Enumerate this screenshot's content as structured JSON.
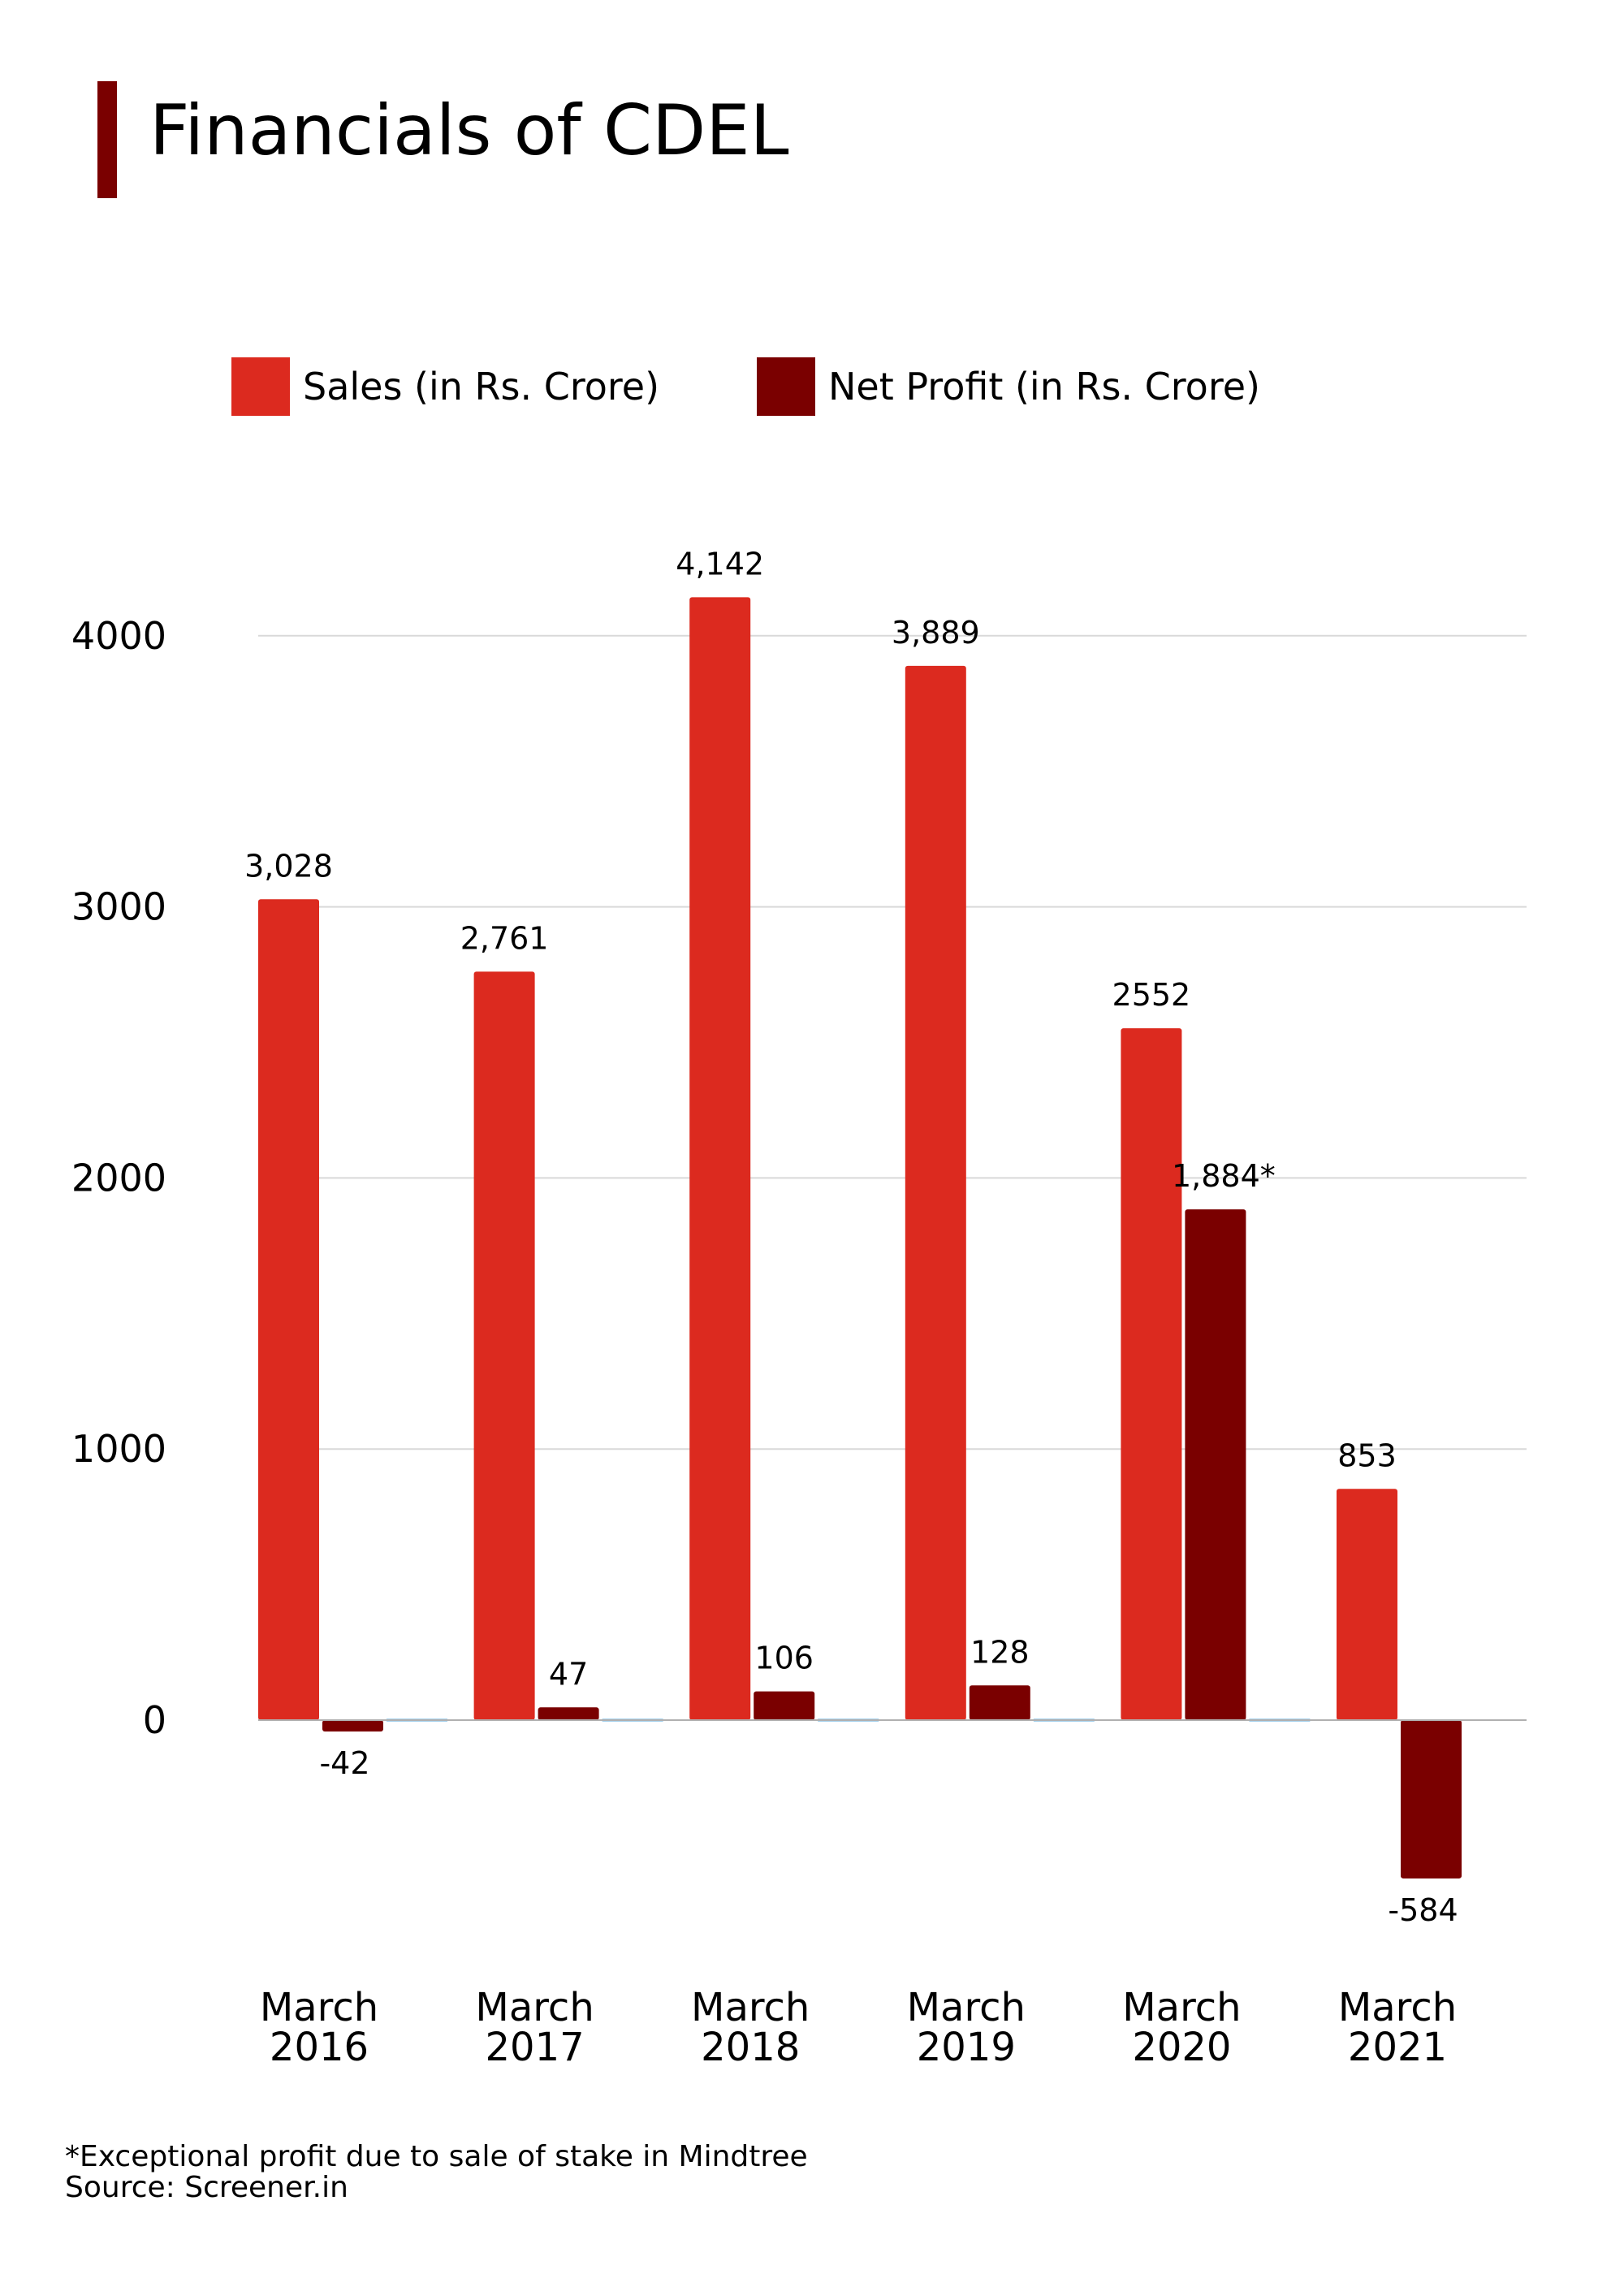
{
  "title": "Financials of CDEL",
  "colors": {
    "accent": "#7a0000",
    "sales": "#dc2a1f",
    "profit": "#7a0000",
    "grid": "#d9d9d9",
    "axis": "#b0b0b0",
    "zero_line": "#4fa3d8"
  },
  "footnote": "*Exceptional profit due to sale of stake in Mindtree",
  "source": "Source: Screener.in",
  "chart_data": {
    "type": "bar",
    "title": "Financials of CDEL",
    "categories": [
      [
        "March",
        "2016"
      ],
      [
        "March",
        "2017"
      ],
      [
        "March",
        "2018"
      ],
      [
        "March",
        "2019"
      ],
      [
        "March",
        "2020"
      ],
      [
        "March",
        "2021"
      ]
    ],
    "series": [
      {
        "name": "Sales (in Rs. Crore)",
        "values": [
          3028,
          2761,
          4142,
          3889,
          2552,
          853
        ],
        "labels": [
          "3,028",
          "2,761",
          "4,142",
          "3,889",
          "2552",
          "853"
        ]
      },
      {
        "name": "Net Profit (in Rs. Crore)",
        "values": [
          -42,
          47,
          106,
          128,
          1884,
          -584
        ],
        "labels": [
          "-42",
          "47",
          "106",
          "128",
          "1,884*",
          "-584"
        ]
      }
    ],
    "yticks": [
      0,
      1000,
      2000,
      3000,
      4000
    ],
    "ylim": [
      -700,
      4400
    ],
    "grid": true,
    "legend": "top"
  }
}
